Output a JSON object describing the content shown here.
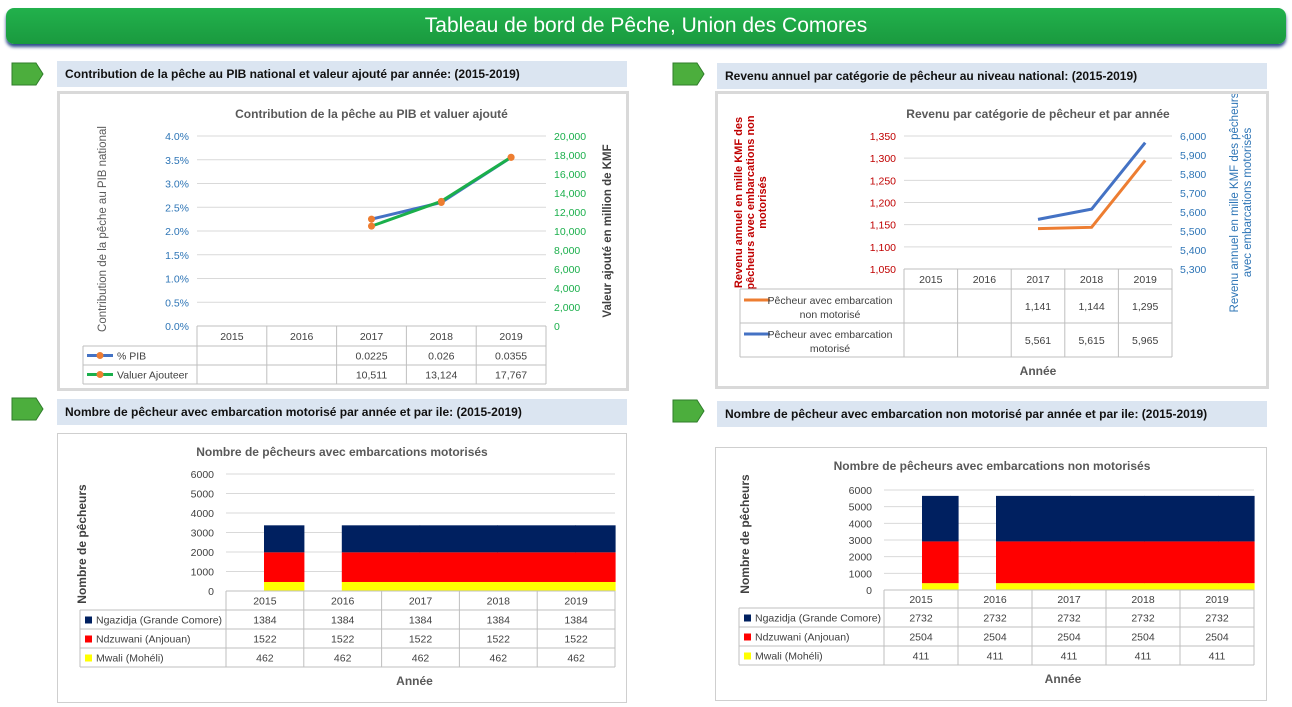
{
  "page_title": "Tableau de bord de Pêche, Union des Comores",
  "sections": {
    "s1": "Contribution de la pêche au PIB national  et valeur ajouté par année: (2015-2019)",
    "s2": "Revenu annuel par catégorie de pêcheur au niveau national: (2015-2019)",
    "s3": "Nombre de pêcheur  avec embarcation motorisé par année et par ile: (2015-2019)",
    "s4": "Nombre de pêcheur  avec embarcation non motorisé par année et par ile: (2015-2019)"
  },
  "colors": {
    "blue": "#4472c4",
    "green": "#1aaf4b",
    "orange": "#ed7d31",
    "navy": "#002060",
    "red": "#ff0000",
    "yellow": "#ffff00",
    "darkred": "#c00000",
    "tealblue": "#2e75b6"
  },
  "chart_data": [
    {
      "type": "line",
      "title": "Contribution de la pêche au PIB et valuer ajouté",
      "ylabel": "Contribution de la pêche au PIB national",
      "y2label": "Valeur ajouté en million de KMF",
      "categories": [
        "2015",
        "2016",
        "2017",
        "2018",
        "2019"
      ],
      "ylim": [
        0,
        0.04
      ],
      "y_ticks": [
        "4.0%",
        "3.5%",
        "3.0%",
        "2.5%",
        "2.0%",
        "1.5%",
        "1.0%",
        "0.5%",
        "0.0%"
      ],
      "y2lim": [
        0,
        20000
      ],
      "y2_ticks": [
        "20,000",
        "18,000",
        "16,000",
        "14,000",
        "12,000",
        "10,000",
        "8,000",
        "6,000",
        "4,000",
        "2,000",
        "0"
      ],
      "series": [
        {
          "name": "% PIB",
          "axis": "left",
          "color": "#4472c4",
          "values": [
            null,
            null,
            0.0225,
            0.026,
            0.0355
          ],
          "labels": [
            "",
            "",
            "0.0225",
            "0.026",
            "0.0355"
          ]
        },
        {
          "name": "Valuer Ajouteer",
          "axis": "right",
          "color": "#1aaf4b",
          "values": [
            null,
            null,
            10511,
            13124,
            17767
          ],
          "labels": [
            "",
            "",
            "10,511",
            "13,124",
            "17,767"
          ]
        }
      ]
    },
    {
      "type": "line",
      "title": "Revenu par catégorie de pêcheur et par année",
      "ylabel": "Revenu annuel en mille KMF des pêcheurs avec embarcations non motorisés",
      "y2label": "Revenu annuel en mille KMF des pêcheurs avec embarcations motorisés",
      "xlabel": "Année",
      "categories": [
        "2015",
        "2016",
        "2017",
        "2018",
        "2019"
      ],
      "ylim": [
        1050,
        1350
      ],
      "y_ticks": [
        "1,350",
        "1,300",
        "1,250",
        "1,200",
        "1,150",
        "1,100",
        "1,050"
      ],
      "y2lim": [
        5300,
        6000
      ],
      "y2_ticks": [
        "6,000",
        "5,900",
        "5,800",
        "5,700",
        "5,600",
        "5,500",
        "5,400",
        "5,300"
      ],
      "series": [
        {
          "name": "Pêcheur avec embarcation non motorisé",
          "axis": "left",
          "color": "#ed7d31",
          "values": [
            null,
            null,
            1141,
            1144,
            1295
          ],
          "labels": [
            "",
            "",
            "1,141",
            "1,144",
            "1,295"
          ]
        },
        {
          "name": "Pêcheur avec embarcation motorisé",
          "axis": "right",
          "color": "#4472c4",
          "values": [
            null,
            null,
            5561,
            5615,
            5965
          ],
          "labels": [
            "",
            "",
            "5,561",
            "5,615",
            "5,965"
          ]
        }
      ]
    },
    {
      "type": "bar",
      "stacked": true,
      "title": "Nombre de pêcheurs avec embarcations motorisés",
      "ylabel": "Nombre de pêcheurs",
      "xlabel": "Année",
      "categories": [
        "2015",
        "2016",
        "2017",
        "2018",
        "2019"
      ],
      "ylim": [
        0,
        6000
      ],
      "y_ticks": [
        "6000",
        "5000",
        "4000",
        "3000",
        "2000",
        "1000",
        "0"
      ],
      "series": [
        {
          "name": "Ngazidja (Grande Comore)",
          "color": "#002060",
          "values": [
            1384,
            1384,
            1384,
            1384,
            1384
          ]
        },
        {
          "name": "Ndzuwani (Anjouan)",
          "color": "#ff0000",
          "values": [
            1522,
            1522,
            1522,
            1522,
            1522
          ]
        },
        {
          "name": "Mwali (Mohéli)",
          "color": "#ffff00",
          "values": [
            462,
            462,
            462,
            462,
            462
          ]
        }
      ]
    },
    {
      "type": "bar",
      "stacked": true,
      "title": "Nombre de pêcheurs avec embarcations non motorisés",
      "ylabel": "Nombre de pêcheurs",
      "xlabel": "Année",
      "categories": [
        "2015",
        "2016",
        "2017",
        "2018",
        "2019"
      ],
      "ylim": [
        0,
        6000
      ],
      "y_ticks": [
        "6000",
        "5000",
        "4000",
        "3000",
        "2000",
        "1000",
        "0"
      ],
      "series": [
        {
          "name": "Ngazidja (Grande Comore)",
          "color": "#002060",
          "values": [
            2732,
            2732,
            2732,
            2732,
            2732
          ]
        },
        {
          "name": "Ndzuwani (Anjouan)",
          "color": "#ff0000",
          "values": [
            2504,
            2504,
            2504,
            2504,
            2504
          ]
        },
        {
          "name": "Mwali (Mohéli)",
          "color": "#ffff00",
          "values": [
            411,
            411,
            411,
            411,
            411
          ]
        }
      ]
    }
  ]
}
